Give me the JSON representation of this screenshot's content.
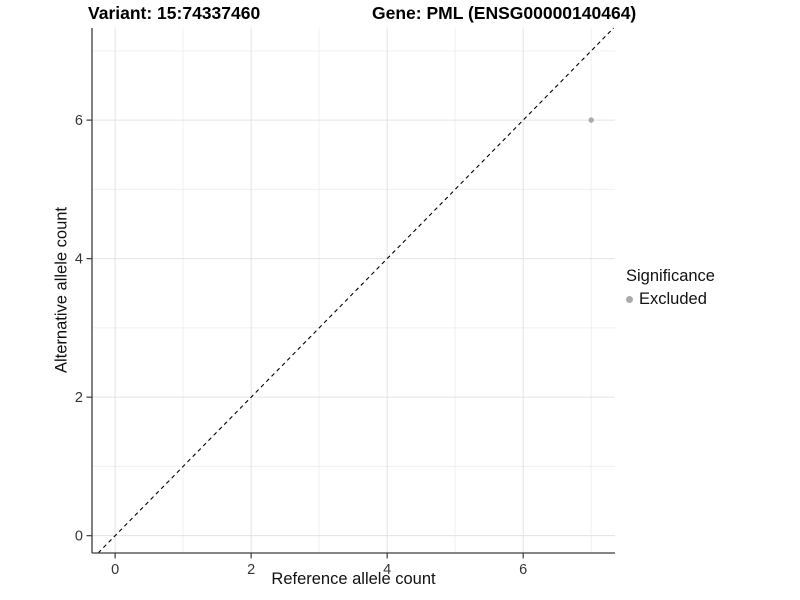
{
  "chart_data": {
    "type": "scatter",
    "title_left": "Variant: 15:74337460",
    "title_right": "Gene: PML (ENSG00000140464)",
    "xlabel": "Reference allele count",
    "ylabel": "Alternative allele count",
    "xlim": [
      -0.34,
      7.35
    ],
    "ylim": [
      -0.25,
      7.33
    ],
    "x_major_ticks": [
      0,
      2,
      4,
      6
    ],
    "x_minor_ticks": [
      1,
      3,
      5,
      7
    ],
    "y_major_ticks": [
      0,
      2,
      4,
      6
    ],
    "y_minor_ticks": [
      1,
      3,
      5,
      7
    ],
    "grid": true,
    "reference_line": {
      "kind": "identity",
      "slope": 1,
      "intercept": 0,
      "style": "dashed",
      "color": "#000000"
    },
    "series": [
      {
        "name": "Excluded",
        "color": "#aaaaaa",
        "points": [
          {
            "x": 7,
            "y": 6
          }
        ]
      }
    ],
    "legend": {
      "title": "Significance",
      "position": "right",
      "items": [
        {
          "label": "Excluded",
          "color": "#aaaaaa",
          "marker": "dot"
        }
      ]
    },
    "style": {
      "background": "#ffffff",
      "grid_major_color": "#e3e3e3",
      "grid_minor_color": "#f0f0f0",
      "axis_line_color": "#3c3c3c",
      "tick_label_color": "#333333",
      "point_radius": 2.7
    }
  }
}
